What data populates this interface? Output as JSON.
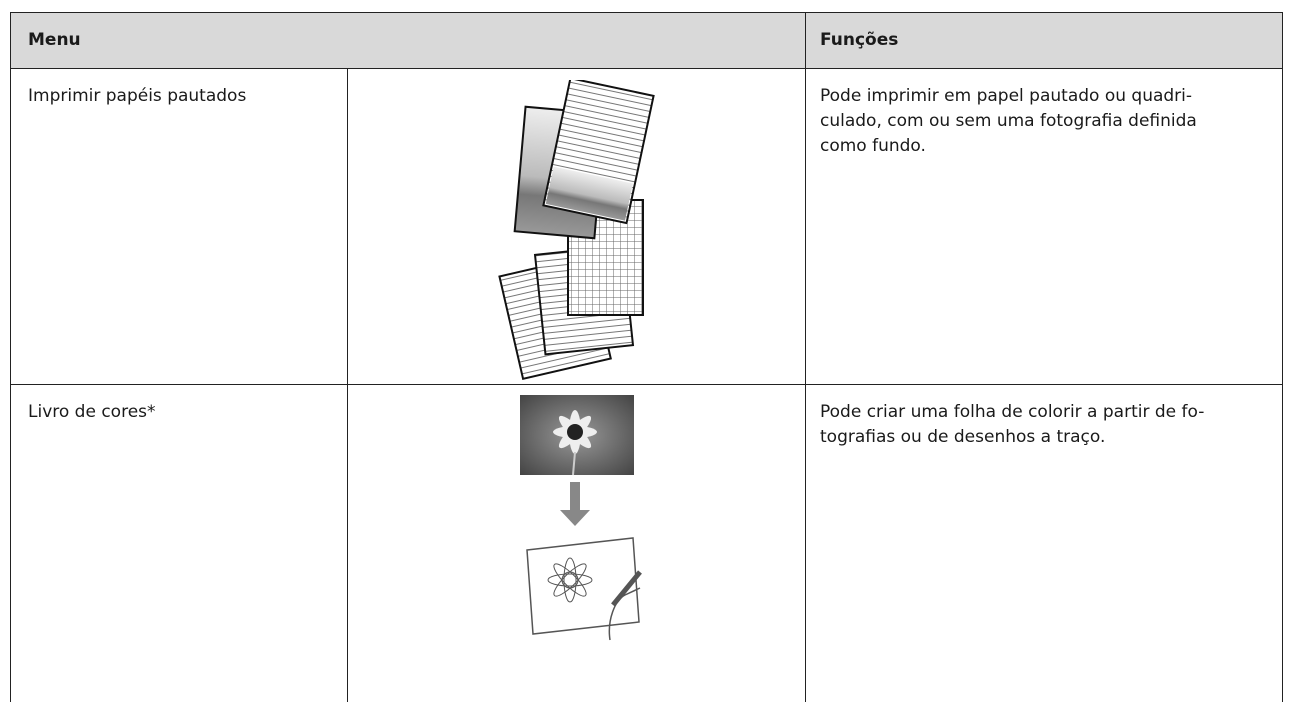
{
  "table": {
    "header": [
      "Menu",
      "Funções"
    ],
    "rows": [
      {
        "menu": "Imprimir papéis pautados",
        "description": [
          "Pode imprimir em papel pautado ou quadri-",
          "culado, com ou sem uma fotografia definida",
          "como fundo."
        ]
      },
      {
        "menu": "Livro de cores*",
        "description": [
          "Pode criar uma folha de colorir a partir de fo-",
          "tografias ou de desenhos a traço."
        ]
      }
    ]
  }
}
